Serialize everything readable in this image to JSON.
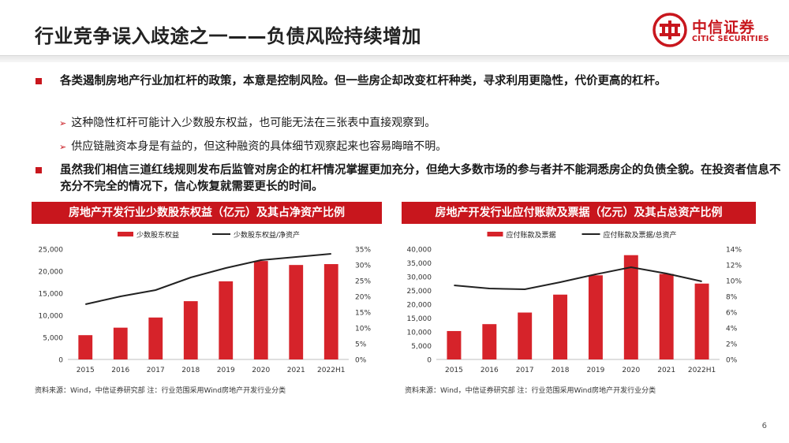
{
  "header": {
    "title": "行业竞争误入歧途之一——负债风险持续增加",
    "logo_cn": "中信证券",
    "logo_en": "CITIC SECURITIES"
  },
  "bullets": [
    {
      "text": "各类遏制房地产行业加杠杆的政策，本意是控制风险。但一些房企却改变杠杆种类，寻求利用更隐性，代价更高的杠杆。"
    },
    {
      "text": "虽然我们相信三道红线规则发布后监管对房企的杠杆情况掌握更加充分，但绝大多数市场的参与者并不能洞悉房企的负债全貌。在投资者信息不充分不完全的情况下，信心恢复就需要更长的时间。"
    }
  ],
  "subbullets": [
    "这种隐性杠杆可能计入少数股东权益，也可能无法在三张表中直接观察到。",
    "供应链融资本身是有益的，但这种融资的具体细节观察起来也容易晦暗不明。"
  ],
  "colors": {
    "accent": "#c8161d",
    "bar": "#d6232a",
    "line": "#222222"
  },
  "chart_data": [
    {
      "type": "bar+line",
      "title": "房地产开发行业少数股东权益（亿元）及其占净资产比例",
      "categories": [
        "2015",
        "2016",
        "2017",
        "2018",
        "2019",
        "2020",
        "2021",
        "2022H1"
      ],
      "series": [
        {
          "name": "少数股东权益",
          "type": "bar",
          "axis": "left",
          "values": [
            5500,
            7200,
            9500,
            13200,
            17700,
            22300,
            21400,
            21600
          ]
        },
        {
          "name": "少数股东权益/净资产",
          "type": "line",
          "axis": "right",
          "values": [
            17.5,
            20,
            22,
            26,
            29,
            31.5,
            32.5,
            33.5
          ]
        }
      ],
      "ylim_left": [
        0,
        25000
      ],
      "yticks_left": [
        "0",
        "5,000",
        "10,000",
        "15,000",
        "20,000",
        "25,000"
      ],
      "ylim_right": [
        0,
        35
      ],
      "yticks_right": [
        "0%",
        "5%",
        "10%",
        "15%",
        "20%",
        "25%",
        "30%",
        "35%"
      ],
      "legend": "top",
      "source": "资料来源：Wind，中信证券研究部 注：行业范围采用Wind房地产开发行业分类"
    },
    {
      "type": "bar+line",
      "title": "房地产开发行业应付账款及票据（亿元）及其占总资产比例",
      "categories": [
        "2015",
        "2016",
        "2017",
        "2018",
        "2019",
        "2020",
        "2021",
        "2022H1"
      ],
      "series": [
        {
          "name": "应付账款及票据",
          "type": "bar",
          "axis": "left",
          "values": [
            10300,
            12800,
            17000,
            23500,
            30500,
            37800,
            31000,
            27500
          ]
        },
        {
          "name": "应付账款及票据/总资产",
          "type": "line",
          "axis": "right",
          "values": [
            9.4,
            9.0,
            8.9,
            9.8,
            10.8,
            11.7,
            10.9,
            9.9
          ]
        }
      ],
      "ylim_left": [
        0,
        40000
      ],
      "yticks_left": [
        "0",
        "5,000",
        "10,000",
        "15,000",
        "20,000",
        "25,000",
        "30,000",
        "35,000",
        "40,000"
      ],
      "ylim_right": [
        0,
        14
      ],
      "yticks_right": [
        "0%",
        "2%",
        "4%",
        "6%",
        "8%",
        "10%",
        "12%",
        "14%"
      ],
      "legend": "top",
      "source": "资料来源：Wind，中信证券研究部 注：行业范围采用Wind房地产开发行业分类"
    }
  ],
  "page_number": "6"
}
